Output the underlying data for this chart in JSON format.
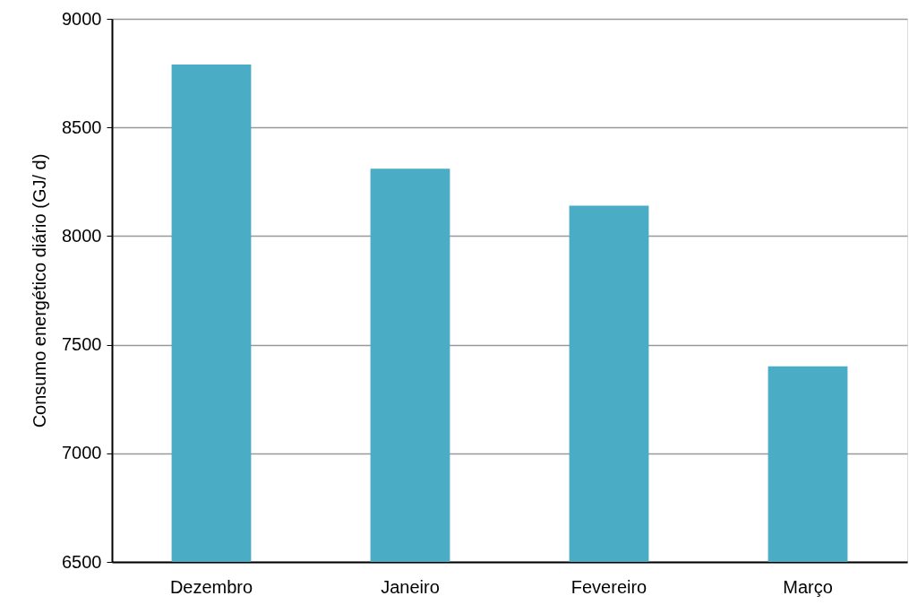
{
  "chart_data": {
    "type": "bar",
    "ylabel": "Consumo energético diário (GJ/ d)",
    "categories": [
      "Dezembro",
      "Janeiro",
      "Fevereiro",
      "Março"
    ],
    "values": [
      8790,
      8310,
      8140,
      7400
    ],
    "color": "#4bacc6",
    "ylim": [
      6500,
      9000
    ],
    "yticks": [
      6500,
      7000,
      7500,
      8000,
      8500,
      9000
    ],
    "grid": "y"
  }
}
